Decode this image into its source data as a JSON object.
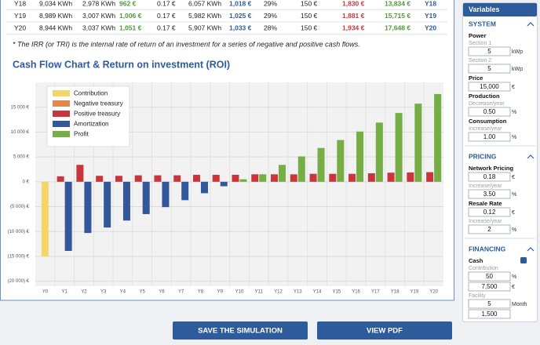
{
  "table": {
    "rows": [
      [
        "Y18",
        "9,034 KWh",
        "2,978 KWh",
        "962 €",
        "0.17 €",
        "6,057 KWh",
        "1,018 €",
        "29%",
        "150 €",
        "1,830 €",
        "13,834 €",
        "Y18"
      ],
      [
        "Y19",
        "8,989 KWh",
        "3,007 KWh",
        "1,006 €",
        "0.17 €",
        "5,982 KWh",
        "1,025 €",
        "29%",
        "150 €",
        "1,881 €",
        "15,715 €",
        "Y19"
      ],
      [
        "Y20",
        "8,944 KWh",
        "3,037 KWh",
        "1,051 €",
        "0.17 €",
        "5,907 KWh",
        "1,033 €",
        "28%",
        "150 €",
        "1,934 €",
        "17,648 €",
        "Y20"
      ]
    ]
  },
  "note": "* The IRR (or TRI) is the internal rate of return of an investment for a series of negative and positive cash flows.",
  "chart_data": {
    "type": "bar",
    "title": "Cash Flow Chart & Return on investment (ROI)",
    "categories": [
      "Y0",
      "Y1",
      "Y2",
      "Y3",
      "Y4",
      "Y5",
      "Y6",
      "Y7",
      "Y8",
      "Y9",
      "Y10",
      "Y11",
      "Y12",
      "Y13",
      "Y14",
      "Y15",
      "Y16",
      "Y17",
      "Y18",
      "Y19",
      "Y20"
    ],
    "series": [
      {
        "name": "Contribution",
        "color": "#f5d56a",
        "values": [
          -15000,
          null,
          null,
          null,
          null,
          null,
          null,
          null,
          null,
          null,
          null,
          null,
          null,
          null,
          null,
          null,
          null,
          null,
          null,
          null,
          null
        ]
      },
      {
        "name": "Negative treasury",
        "color": "#e08a4c",
        "values": [
          null,
          null,
          null,
          null,
          null,
          null,
          null,
          null,
          null,
          null,
          null,
          null,
          null,
          null,
          null,
          null,
          null,
          null,
          null,
          null,
          null
        ]
      },
      {
        "name": "Positive treasury",
        "color": "#c8363c",
        "values": [
          null,
          1100,
          3400,
          1200,
          1200,
          1300,
          1300,
          1300,
          1400,
          1400,
          1400,
          1500,
          1500,
          1500,
          1600,
          1600,
          1600,
          1700,
          1830,
          1881,
          1934
        ]
      },
      {
        "name": "Amortization",
        "color": "#34569a",
        "values": [
          null,
          -13900,
          -10300,
          -9200,
          -7800,
          -6500,
          -5100,
          -3700,
          -2300,
          -900,
          null,
          null,
          null,
          null,
          null,
          null,
          null,
          null,
          null,
          null,
          null
        ]
      },
      {
        "name": "Profit",
        "color": "#76ad45",
        "values": [
          null,
          null,
          null,
          null,
          null,
          null,
          null,
          null,
          null,
          null,
          500,
          1500,
          3400,
          5100,
          6800,
          8400,
          10100,
          11900,
          13834,
          15715,
          17648
        ]
      }
    ],
    "ylim": [
      -21000,
      20000
    ],
    "yticks": [
      {
        "value": 15000,
        "label": "15 000 €"
      },
      {
        "value": 10000,
        "label": "10 000 €"
      },
      {
        "value": 5000,
        "label": "5 000 €"
      },
      {
        "value": 0,
        "label": "0 €"
      },
      {
        "value": -5000,
        "label": "(5 000) €"
      },
      {
        "value": -10000,
        "label": "(10 000) €"
      },
      {
        "value": -15000,
        "label": "(15 000) €"
      },
      {
        "value": -20000,
        "label": "(20 000) €"
      }
    ],
    "grid": true,
    "legend": "upper left"
  },
  "sidebar": {
    "title": "Variables",
    "items": [
      {
        "section": "SYSTEM"
      },
      {
        "label": "Power"
      },
      {
        "sub": "Section 1"
      },
      {
        "input": "5",
        "unit": "kWp"
      },
      {
        "sub": "Section 2"
      },
      {
        "input": "5",
        "unit": "kWp"
      },
      {
        "label": "Price"
      },
      {
        "input": "15,000",
        "unit": "€"
      },
      {
        "label": "Production"
      },
      {
        "sub": "Decrease/year"
      },
      {
        "input": "0.50",
        "unit": "%"
      },
      {
        "label": "Consumption"
      },
      {
        "sub": "Increase/year"
      },
      {
        "input": "1.00",
        "unit": "%"
      },
      {
        "section": "PRICING"
      },
      {
        "label": "Network Pricing"
      },
      {
        "input": "0.18",
        "unit": "€"
      },
      {
        "sub": "Increase/year"
      },
      {
        "input": "3.50",
        "unit": "%"
      },
      {
        "label": "Resale Rate"
      },
      {
        "input": "0.12",
        "unit": "€"
      },
      {
        "sub": "Increase/year"
      },
      {
        "input": "2",
        "unit": "%"
      },
      {
        "section": "FINANCING"
      },
      {
        "label": "Cash"
      },
      {
        "sub": "Contribution"
      },
      {
        "input": "50",
        "unit": "%"
      },
      {
        "input": "7,500",
        "unit": "€"
      },
      {
        "sub": "Facility"
      },
      {
        "input": "5",
        "unit": "Month"
      },
      {
        "input": "1,500"
      }
    ]
  },
  "buttons": {
    "save": "SAVE THE SIMULATION",
    "pdf": "VIEW PDF"
  }
}
